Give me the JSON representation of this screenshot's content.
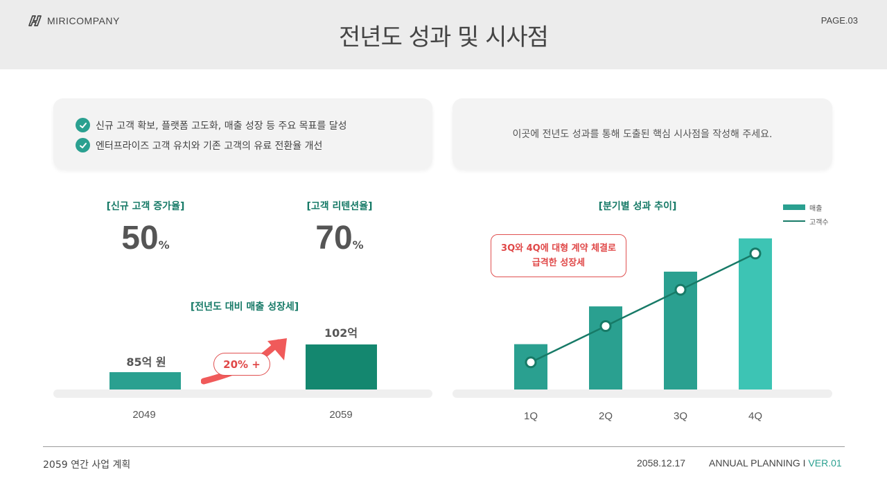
{
  "header": {
    "logo_text": "MIRICOMPANY",
    "page": "PAGE.03",
    "title": "전년도 성과 및 시사점"
  },
  "achievements": [
    "신규 고객 확보, 플랫폼 고도화, 매출 성장 등 주요 목표를 달성",
    "엔터프라이즈 고객 유치와 기존 고객의 유료 전환율 개선"
  ],
  "insight": "이곳에 전년도 성과를 통해 도출된 핵심 시사점을 작성해 주세요.",
  "kpis": [
    {
      "label": "[신규 고객 증가율]",
      "value": "50",
      "unit": "%"
    },
    {
      "label": "[고객 리텐션율]",
      "value": "70",
      "unit": "%"
    }
  ],
  "growth": {
    "title": "[전년도 대비 매출 성장세]",
    "growth_label": "20% +",
    "prev_label": "85억 원",
    "curr_label": "102억",
    "prev_year": "2049",
    "curr_year": "2059"
  },
  "quarterly": {
    "title": "[분기별 성과 추이]",
    "legend_bar": "매출",
    "legend_line": "고객수",
    "callout_line1": "3Q와 4Q에 대형 계약 체결로",
    "callout_line2": "급격한 성장세"
  },
  "footer": {
    "left": "2059 연간 사업 계획",
    "date": "2058.12.17",
    "right": "ANNUAL PLANNING I",
    "version": "VER.01"
  },
  "colors": {
    "accent": "#2aa090",
    "accent_dark": "#177a67",
    "highlight": "#e04848"
  },
  "chart_data": [
    {
      "type": "bar",
      "title": "[전년도 대비 매출 성장세]",
      "categories": [
        "2049",
        "2059"
      ],
      "values": [
        85,
        102
      ],
      "data_labels": [
        "85억 원",
        "102억"
      ]
    },
    {
      "type": "bar",
      "title": "[분기별 성과 추이]",
      "categories": [
        "1Q",
        "2Q",
        "3Q",
        "4Q"
      ],
      "series": [
        {
          "name": "매출",
          "type": "bar",
          "values": [
            30,
            55,
            78,
            100
          ]
        },
        {
          "name": "고객수",
          "type": "line",
          "values": [
            18,
            42,
            66,
            90
          ]
        }
      ],
      "ylim": [
        0,
        100
      ],
      "legend": "top-right"
    }
  ]
}
